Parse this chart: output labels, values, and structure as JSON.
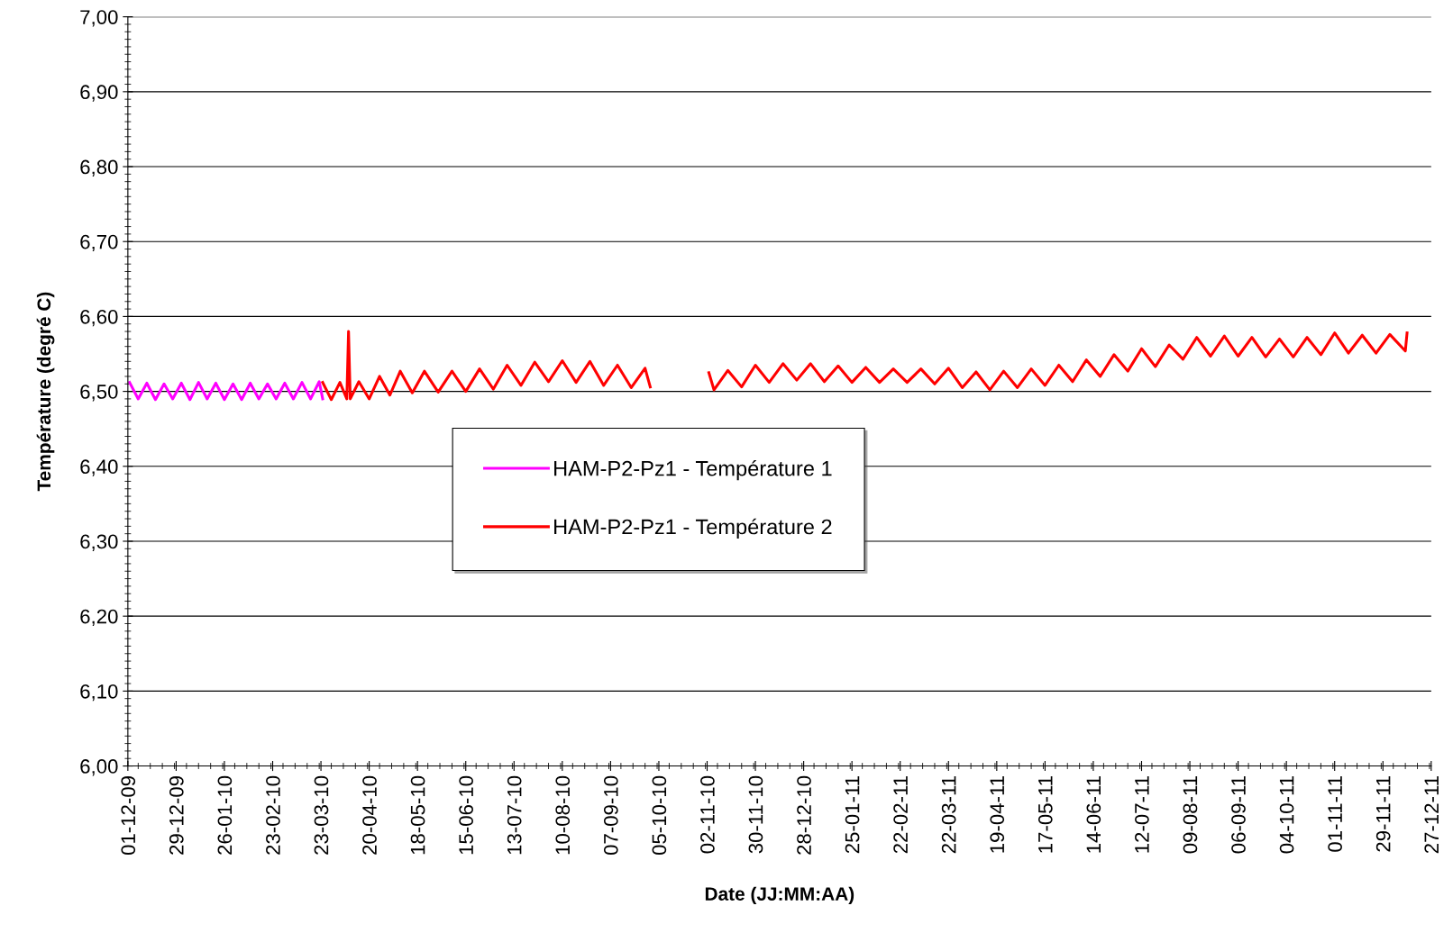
{
  "chart_data": {
    "type": "line",
    "ylabel": "Température (degré C)",
    "xlabel": "Date (JJ:MM:AA)",
    "series": [
      {
        "name": "HAM-P2-Pz1 - Température 1",
        "color": "#ff00ff",
        "x": [
          "2009-12-02",
          "2009-12-07",
          "2009-12-12",
          "2009-12-17",
          "2009-12-22",
          "2009-12-27",
          "2010-01-01",
          "2010-01-06",
          "2010-01-11",
          "2010-01-16",
          "2010-01-21",
          "2010-01-26",
          "2010-01-31",
          "2010-02-05",
          "2010-02-10",
          "2010-02-15",
          "2010-02-20",
          "2010-02-25",
          "2010-03-02",
          "2010-03-07",
          "2010-03-12",
          "2010-03-17",
          "2010-03-22",
          "2010-03-24"
        ],
        "values": [
          6.512,
          6.49,
          6.511,
          6.489,
          6.51,
          6.49,
          6.511,
          6.489,
          6.512,
          6.49,
          6.511,
          6.489,
          6.51,
          6.489,
          6.511,
          6.49,
          6.51,
          6.49,
          6.511,
          6.49,
          6.512,
          6.49,
          6.513,
          6.49
        ]
      },
      {
        "name": "HAM-P2-Pz1 - Température 2",
        "color": "#ff0000",
        "x": [
          "2010-03-24",
          "2010-03-29",
          "2010-04-03",
          "2010-04-07",
          "2010-04-08",
          "2010-04-09",
          "2010-04-14",
          "2010-04-20",
          "2010-04-26",
          "2010-05-02",
          "2010-05-08",
          "2010-05-15",
          "2010-05-22",
          "2010-05-30",
          "2010-06-07",
          "2010-06-15",
          "2010-06-23",
          "2010-07-01",
          "2010-07-09",
          "2010-07-17",
          "2010-07-25",
          "2010-08-02",
          "2010-08-10",
          "2010-08-18",
          "2010-08-26",
          "2010-09-03",
          "2010-09-11",
          "2010-09-19",
          "2010-09-27",
          "2010-09-30",
          "2010-10-17",
          "2010-11-03",
          "2010-11-06",
          "2010-11-14",
          "2010-11-22",
          "2010-11-30",
          "2010-12-08",
          "2010-12-16",
          "2010-12-24",
          "2011-01-01",
          "2011-01-09",
          "2011-01-17",
          "2011-01-25",
          "2011-02-02",
          "2011-02-10",
          "2011-02-18",
          "2011-02-26",
          "2011-03-06",
          "2011-03-14",
          "2011-03-22",
          "2011-03-30",
          "2011-04-07",
          "2011-04-15",
          "2011-04-23",
          "2011-05-01",
          "2011-05-09",
          "2011-05-17",
          "2011-05-25",
          "2011-06-02",
          "2011-06-10",
          "2011-06-18",
          "2011-06-26",
          "2011-07-04",
          "2011-07-12",
          "2011-07-20",
          "2011-07-28",
          "2011-08-05",
          "2011-08-13",
          "2011-08-21",
          "2011-08-29",
          "2011-09-06",
          "2011-09-14",
          "2011-09-22",
          "2011-09-30",
          "2011-10-08",
          "2011-10-16",
          "2011-10-24",
          "2011-11-01",
          "2011-11-09",
          "2011-11-17",
          "2011-11-25",
          "2011-12-03",
          "2011-12-12",
          "2011-12-13"
        ],
        "values": [
          6.512,
          6.489,
          6.512,
          6.49,
          6.58,
          6.49,
          6.513,
          6.49,
          6.52,
          6.495,
          6.527,
          6.498,
          6.527,
          6.499,
          6.527,
          6.5,
          6.53,
          6.503,
          6.535,
          6.508,
          6.539,
          6.513,
          6.541,
          6.512,
          6.54,
          6.508,
          6.535,
          6.505,
          6.531,
          6.506,
          null,
          6.525,
          6.502,
          6.528,
          6.506,
          6.535,
          6.512,
          6.537,
          6.515,
          6.537,
          6.513,
          6.534,
          6.512,
          6.532,
          6.512,
          6.53,
          6.512,
          6.53,
          6.51,
          6.531,
          6.505,
          6.526,
          6.502,
          6.527,
          6.505,
          6.53,
          6.508,
          6.535,
          6.513,
          6.542,
          6.52,
          6.549,
          6.527,
          6.557,
          6.533,
          6.562,
          6.543,
          6.572,
          6.547,
          6.574,
          6.547,
          6.572,
          6.546,
          6.57,
          6.546,
          6.572,
          6.549,
          6.578,
          6.551,
          6.575,
          6.551,
          6.576,
          6.554,
          6.578
        ]
      }
    ],
    "xlim": [
      "2009-12-01",
      "2011-12-27"
    ],
    "xticks": [
      {
        "value": "2009-12-01",
        "label": "01-12-09"
      },
      {
        "value": "2009-12-29",
        "label": "29-12-09"
      },
      {
        "value": "2010-01-26",
        "label": "26-01-10"
      },
      {
        "value": "2010-02-23",
        "label": "23-02-10"
      },
      {
        "value": "2010-03-23",
        "label": "23-03-10"
      },
      {
        "value": "2010-04-20",
        "label": "20-04-10"
      },
      {
        "value": "2010-05-18",
        "label": "18-05-10"
      },
      {
        "value": "2010-06-15",
        "label": "15-06-10"
      },
      {
        "value": "2010-07-13",
        "label": "13-07-10"
      },
      {
        "value": "2010-08-10",
        "label": "10-08-10"
      },
      {
        "value": "2010-09-07",
        "label": "07-09-10"
      },
      {
        "value": "2010-10-05",
        "label": "05-10-10"
      },
      {
        "value": "2010-11-02",
        "label": "02-11-10"
      },
      {
        "value": "2010-11-30",
        "label": "30-11-10"
      },
      {
        "value": "2010-12-28",
        "label": "28-12-10"
      },
      {
        "value": "2011-01-25",
        "label": "25-01-11"
      },
      {
        "value": "2011-02-22",
        "label": "22-02-11"
      },
      {
        "value": "2011-03-22",
        "label": "22-03-11"
      },
      {
        "value": "2011-04-19",
        "label": "19-04-11"
      },
      {
        "value": "2011-05-17",
        "label": "17-05-11"
      },
      {
        "value": "2011-06-14",
        "label": "14-06-11"
      },
      {
        "value": "2011-07-12",
        "label": "12-07-11"
      },
      {
        "value": "2011-08-09",
        "label": "09-08-11"
      },
      {
        "value": "2011-09-06",
        "label": "06-09-11"
      },
      {
        "value": "2011-10-04",
        "label": "04-10-11"
      },
      {
        "value": "2011-11-01",
        "label": "01-11-11"
      },
      {
        "value": "2011-11-29",
        "label": "29-11-11"
      },
      {
        "value": "2011-12-27",
        "label": "27-12-11"
      }
    ],
    "ylim": [
      6.0,
      7.0
    ],
    "yticks": [
      {
        "value": 6.0,
        "label": "6,00"
      },
      {
        "value": 6.1,
        "label": "6,10"
      },
      {
        "value": 6.2,
        "label": "6,20"
      },
      {
        "value": 6.3,
        "label": "6,30"
      },
      {
        "value": 6.4,
        "label": "6,40"
      },
      {
        "value": 6.5,
        "label": "6,50"
      },
      {
        "value": 6.6,
        "label": "6,60"
      },
      {
        "value": 6.7,
        "label": "6,70"
      },
      {
        "value": 6.8,
        "label": "6,80"
      },
      {
        "value": 6.9,
        "label": "6,90"
      },
      {
        "value": 7.0,
        "label": "7,00"
      }
    ],
    "grid": "y",
    "legend": "center",
    "marker": "none",
    "line_style": "solid"
  }
}
